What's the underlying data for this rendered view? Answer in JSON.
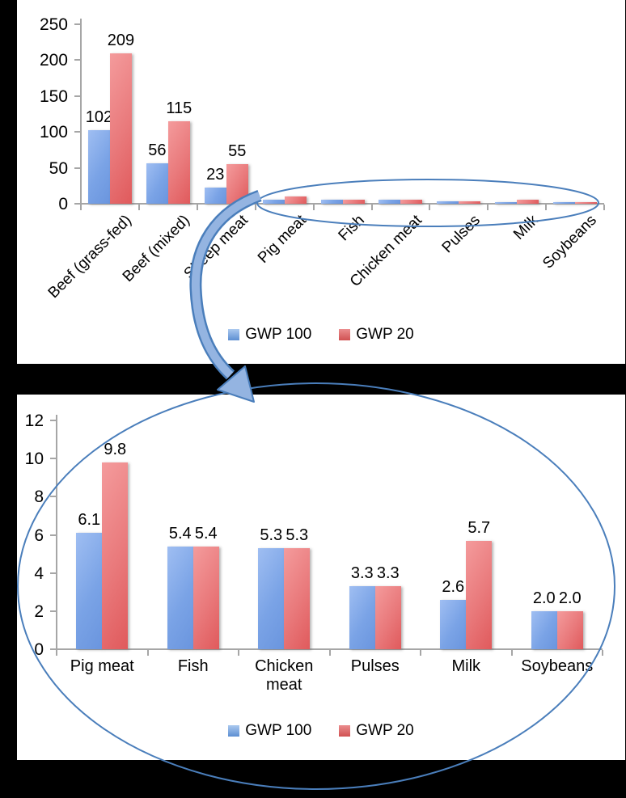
{
  "page": {
    "background": "#000000",
    "panel_background": "#ffffff"
  },
  "colors": {
    "bar_blue": "#7aa3e6",
    "bar_red": "#e2605f",
    "annotation_blue": "#4a7ebb",
    "axis_gray": "#a6a6a6"
  },
  "legend": {
    "items": [
      {
        "label": "GWP 100",
        "color_key": "blue"
      },
      {
        "label": "GWP 20",
        "color_key": "red"
      }
    ]
  },
  "annotations": {
    "color": "#4a7ebb",
    "shapes": [
      "ellipse-around-small-bars",
      "curved-arrow",
      "ellipse-around-zoomed-chart"
    ]
  },
  "chart_data": [
    {
      "id": "overview",
      "type": "bar",
      "title": "",
      "categories": [
        "Beef (grass-fed)",
        "Beef (mixed)",
        "Sheep meat",
        "Pig meat",
        "Fish",
        "Chicken meat",
        "Pulses",
        "Milk",
        "Soybeans"
      ],
      "series": [
        {
          "name": "GWP 100",
          "values": [
            102,
            56,
            23,
            6.1,
            5.4,
            5.3,
            3.3,
            2.6,
            2.0
          ],
          "labels": [
            "102",
            "56",
            "23",
            "",
            "",
            "",
            "",
            "",
            ""
          ]
        },
        {
          "name": "GWP 20",
          "values": [
            209,
            115,
            55,
            9.8,
            5.4,
            5.3,
            3.3,
            5.7,
            2.0
          ],
          "labels": [
            "209",
            "115",
            "55",
            "",
            "",
            "",
            "",
            "",
            ""
          ]
        }
      ],
      "xlabel": "",
      "ylabel": "",
      "ylim": [
        0,
        250
      ],
      "yticks": [
        "0",
        "50",
        "100",
        "150",
        "200",
        "250"
      ],
      "grid": false,
      "legend_position": "bottom"
    },
    {
      "id": "zoomed-detail",
      "type": "bar",
      "title": "",
      "categories": [
        "Pig meat",
        "Fish",
        "Chicken meat",
        "Pulses",
        "Milk",
        "Soybeans"
      ],
      "series": [
        {
          "name": "GWP 100",
          "values": [
            6.1,
            5.4,
            5.3,
            3.3,
            2.6,
            2.0
          ],
          "labels": [
            "6.1",
            "5.4",
            "5.3",
            "3.3",
            "2.6",
            "2.0"
          ]
        },
        {
          "name": "GWP 20",
          "values": [
            9.8,
            5.4,
            5.3,
            3.3,
            5.7,
            2.0
          ],
          "labels": [
            "9.8",
            "5.4",
            "5.3",
            "3.3",
            "5.7",
            "2.0"
          ]
        }
      ],
      "xlabel": "",
      "ylabel": "",
      "ylim": [
        0,
        12
      ],
      "yticks": [
        "0",
        "2",
        "4",
        "6",
        "8",
        "10",
        "12"
      ],
      "grid": false,
      "legend_position": "bottom"
    }
  ]
}
